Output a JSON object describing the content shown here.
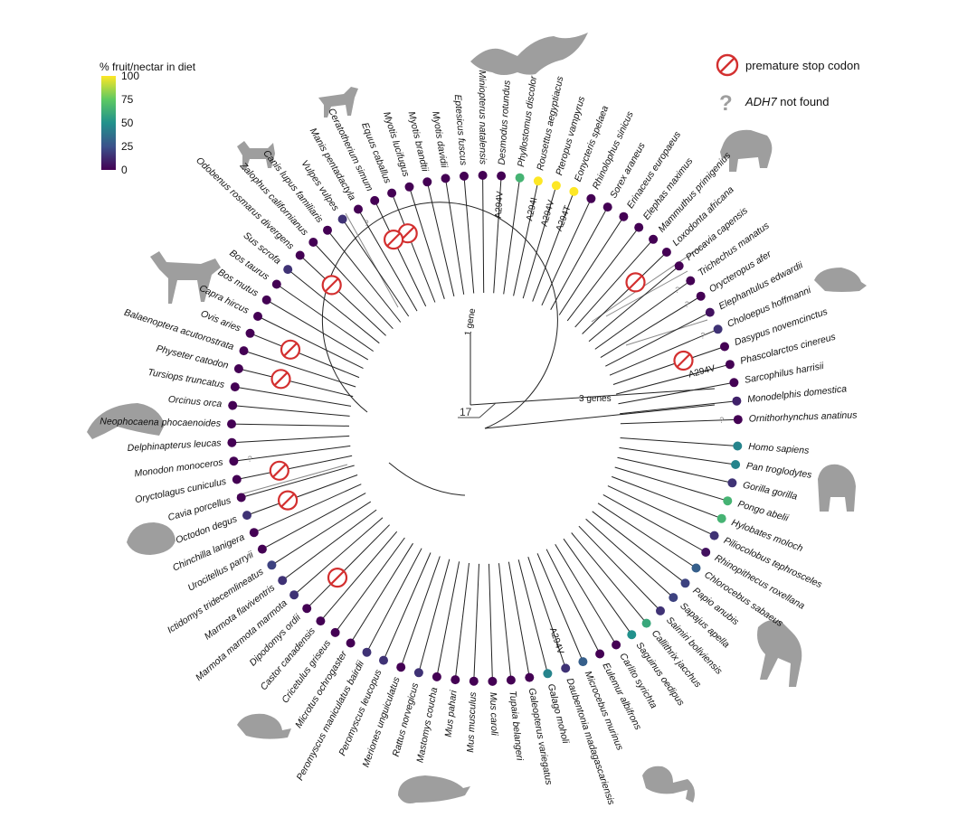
{
  "legend": {
    "title": "% fruit/nectar in diet",
    "ticks": [
      100,
      75,
      50,
      25,
      0
    ],
    "items": [
      {
        "icon": "stop-codon-icon",
        "label": "premature stop codon"
      },
      {
        "icon": "question-mark-icon",
        "label_gene": "ADH7",
        "label_rest": " not found"
      }
    ]
  },
  "colorscale": {
    "name": "viridis",
    "stops": [
      "#440154",
      "#3b528b",
      "#21918c",
      "#5ec962",
      "#fde725"
    ]
  },
  "scale_bar": {
    "label": "17"
  },
  "clade_labels": [
    {
      "id": "one-gene",
      "text": "1 gene"
    },
    {
      "id": "three-genes",
      "text": "3 genes"
    }
  ],
  "mutation_labels": [
    "A294V",
    "A294I",
    "A294V",
    "A294T",
    "A294V",
    "A294V",
    "A294V"
  ],
  "missing_mark": "?",
  "species": [
    {
      "name": "Ornithorhynchus anatinus",
      "fruit": 0,
      "missing": true
    },
    {
      "name": "Monodelphis domestica",
      "fruit": 10
    },
    {
      "name": "Sarcophilus harrisii",
      "fruit": 0
    },
    {
      "name": "Phascolarctos cinereus",
      "fruit": 0,
      "mutation": "A294V"
    },
    {
      "name": "Dasypus novemcinctus",
      "fruit": 0,
      "stop": true
    },
    {
      "name": "Choloepus hoffmanni",
      "fruit": 15,
      "missing": true
    },
    {
      "name": "Elephantulus edwardii",
      "fruit": 5
    },
    {
      "name": "Orycteropus afer",
      "fruit": 0,
      "missing": true
    },
    {
      "name": "Trichechus manatus",
      "fruit": 0,
      "missing": true
    },
    {
      "name": "Procavia capensis",
      "fruit": 0
    },
    {
      "name": "Loxodonta africana",
      "fruit": 0,
      "stop": true
    },
    {
      "name": "Mammuthus primigenius",
      "fruit": 0
    },
    {
      "name": "Elephas maximus",
      "fruit": 0
    },
    {
      "name": "Erinaceus europaeus",
      "fruit": 0
    },
    {
      "name": "Sorex araneus",
      "fruit": 0
    },
    {
      "name": "Rhinolophus sinicus",
      "fruit": 0
    },
    {
      "name": "Eonycteris spelaea",
      "fruit": 100,
      "mutation": "A294T"
    },
    {
      "name": "Pteropus vampyrus",
      "fruit": 100,
      "mutation": "A294V"
    },
    {
      "name": "Rousettus aegyptiacus",
      "fruit": 100,
      "mutation": "A294I"
    },
    {
      "name": "Phyllostomus discolor",
      "fruit": 65
    },
    {
      "name": "Desmodus rotundus",
      "fruit": 0,
      "mutation": "A294V"
    },
    {
      "name": "Miniopterus natalensis",
      "fruit": 0
    },
    {
      "name": "Eptesicus fuscus",
      "fruit": 0
    },
    {
      "name": "Myotis davidii",
      "fruit": 0
    },
    {
      "name": "Myotis brandtii",
      "fruit": 0
    },
    {
      "name": "Myotis lucifugus",
      "fruit": 0
    },
    {
      "name": "Equus caballus",
      "fruit": 0,
      "stop": true
    },
    {
      "name": "Ceratotherium simum",
      "fruit": 0,
      "stop": true
    },
    {
      "name": "Manis pentadactyla",
      "fruit": 0,
      "missing": true
    },
    {
      "name": "Vulpes vulpes",
      "fruit": 15
    },
    {
      "name": "Canis lupus familiaris",
      "fruit": 0
    },
    {
      "name": "Zalophus californianus",
      "fruit": 0
    },
    {
      "name": "Odobenus rosmarus divergens",
      "fruit": 0,
      "stop": true
    },
    {
      "name": "Sus scrofa",
      "fruit": 15
    },
    {
      "name": "Bos taurus",
      "fruit": 0
    },
    {
      "name": "Bos mutus",
      "fruit": 0
    },
    {
      "name": "Capra hircus",
      "fruit": 0
    },
    {
      "name": "Ovis aries",
      "fruit": 0,
      "stop": true
    },
    {
      "name": "Balaenoptera acutorostrata",
      "fruit": 0
    },
    {
      "name": "Physeter catodon",
      "fruit": 0,
      "stop": true
    },
    {
      "name": "Tursiops truncatus",
      "fruit": 0
    },
    {
      "name": "Orcinus orca",
      "fruit": 0
    },
    {
      "name": "Neophocaena phocaenoides",
      "fruit": 0
    },
    {
      "name": "Delphinapterus leucas",
      "fruit": 0
    },
    {
      "name": "Monodon monoceros",
      "fruit": 0,
      "missing": true
    },
    {
      "name": "Oryctolagus cuniculus",
      "fruit": 0,
      "stop": true
    },
    {
      "name": "Cavia porcellus",
      "fruit": 0
    },
    {
      "name": "Octodon degus",
      "fruit": 15,
      "stop": true
    },
    {
      "name": "Chinchilla lanigera",
      "fruit": 0
    },
    {
      "name": "Urocitellus parryii",
      "fruit": 0
    },
    {
      "name": "Ictidomys tridecemlineatus",
      "fruit": 20
    },
    {
      "name": "Marmota flaviventris",
      "fruit": 15
    },
    {
      "name": "Marmota marmota marmota",
      "fruit": 15
    },
    {
      "name": "Dipodomys ordii",
      "fruit": 0,
      "stop": true
    },
    {
      "name": "Castor canadensis",
      "fruit": 0
    },
    {
      "name": "Cricetulus griseus",
      "fruit": 0
    },
    {
      "name": "Microtus ochrogaster",
      "fruit": 0
    },
    {
      "name": "Peromyscus maniculatus bairdii",
      "fruit": 15
    },
    {
      "name": "Peromyscus leucopus",
      "fruit": 15
    },
    {
      "name": "Meriones unguiculatus",
      "fruit": 0
    },
    {
      "name": "Rattus norvegicus",
      "fruit": 15
    },
    {
      "name": "Mastomys coucha",
      "fruit": 0
    },
    {
      "name": "Mus pahari",
      "fruit": 0
    },
    {
      "name": "Mus musculus",
      "fruit": 0
    },
    {
      "name": "Mus caroli",
      "fruit": 0
    },
    {
      "name": "Tupaia belangeri",
      "fruit": 0
    },
    {
      "name": "Galeopterus variegatus",
      "fruit": 0
    },
    {
      "name": "Galago moholi",
      "fruit": 45
    },
    {
      "name": "Daubentonia madagascariensis",
      "fruit": 15,
      "mutation": "A294V"
    },
    {
      "name": "Microcebus murinus",
      "fruit": 30
    },
    {
      "name": "Eulemur albifrons",
      "fruit": 0
    },
    {
      "name": "Carlito syrichta",
      "fruit": 0
    },
    {
      "name": "Saguinus oedipus",
      "fruit": 50
    },
    {
      "name": "Callithrix jacchus",
      "fruit": 60
    },
    {
      "name": "Saimiri boliviensis",
      "fruit": 15
    },
    {
      "name": "Sapajus apella",
      "fruit": 20
    },
    {
      "name": "Papio anubis",
      "fruit": 20
    },
    {
      "name": "Chlorocebus sabaeus",
      "fruit": 30
    },
    {
      "name": "Rhinopithecus roxellana",
      "fruit": 5
    },
    {
      "name": "Piliocolobus tephrosceles",
      "fruit": 15
    },
    {
      "name": "Hylobates moloch",
      "fruit": 65
    },
    {
      "name": "Pongo abelii",
      "fruit": 65
    },
    {
      "name": "Gorilla gorilla",
      "fruit": 15
    },
    {
      "name": "Pan troglodytes",
      "fruit": 45
    },
    {
      "name": "Homo sapiens",
      "fruit": 45
    }
  ]
}
